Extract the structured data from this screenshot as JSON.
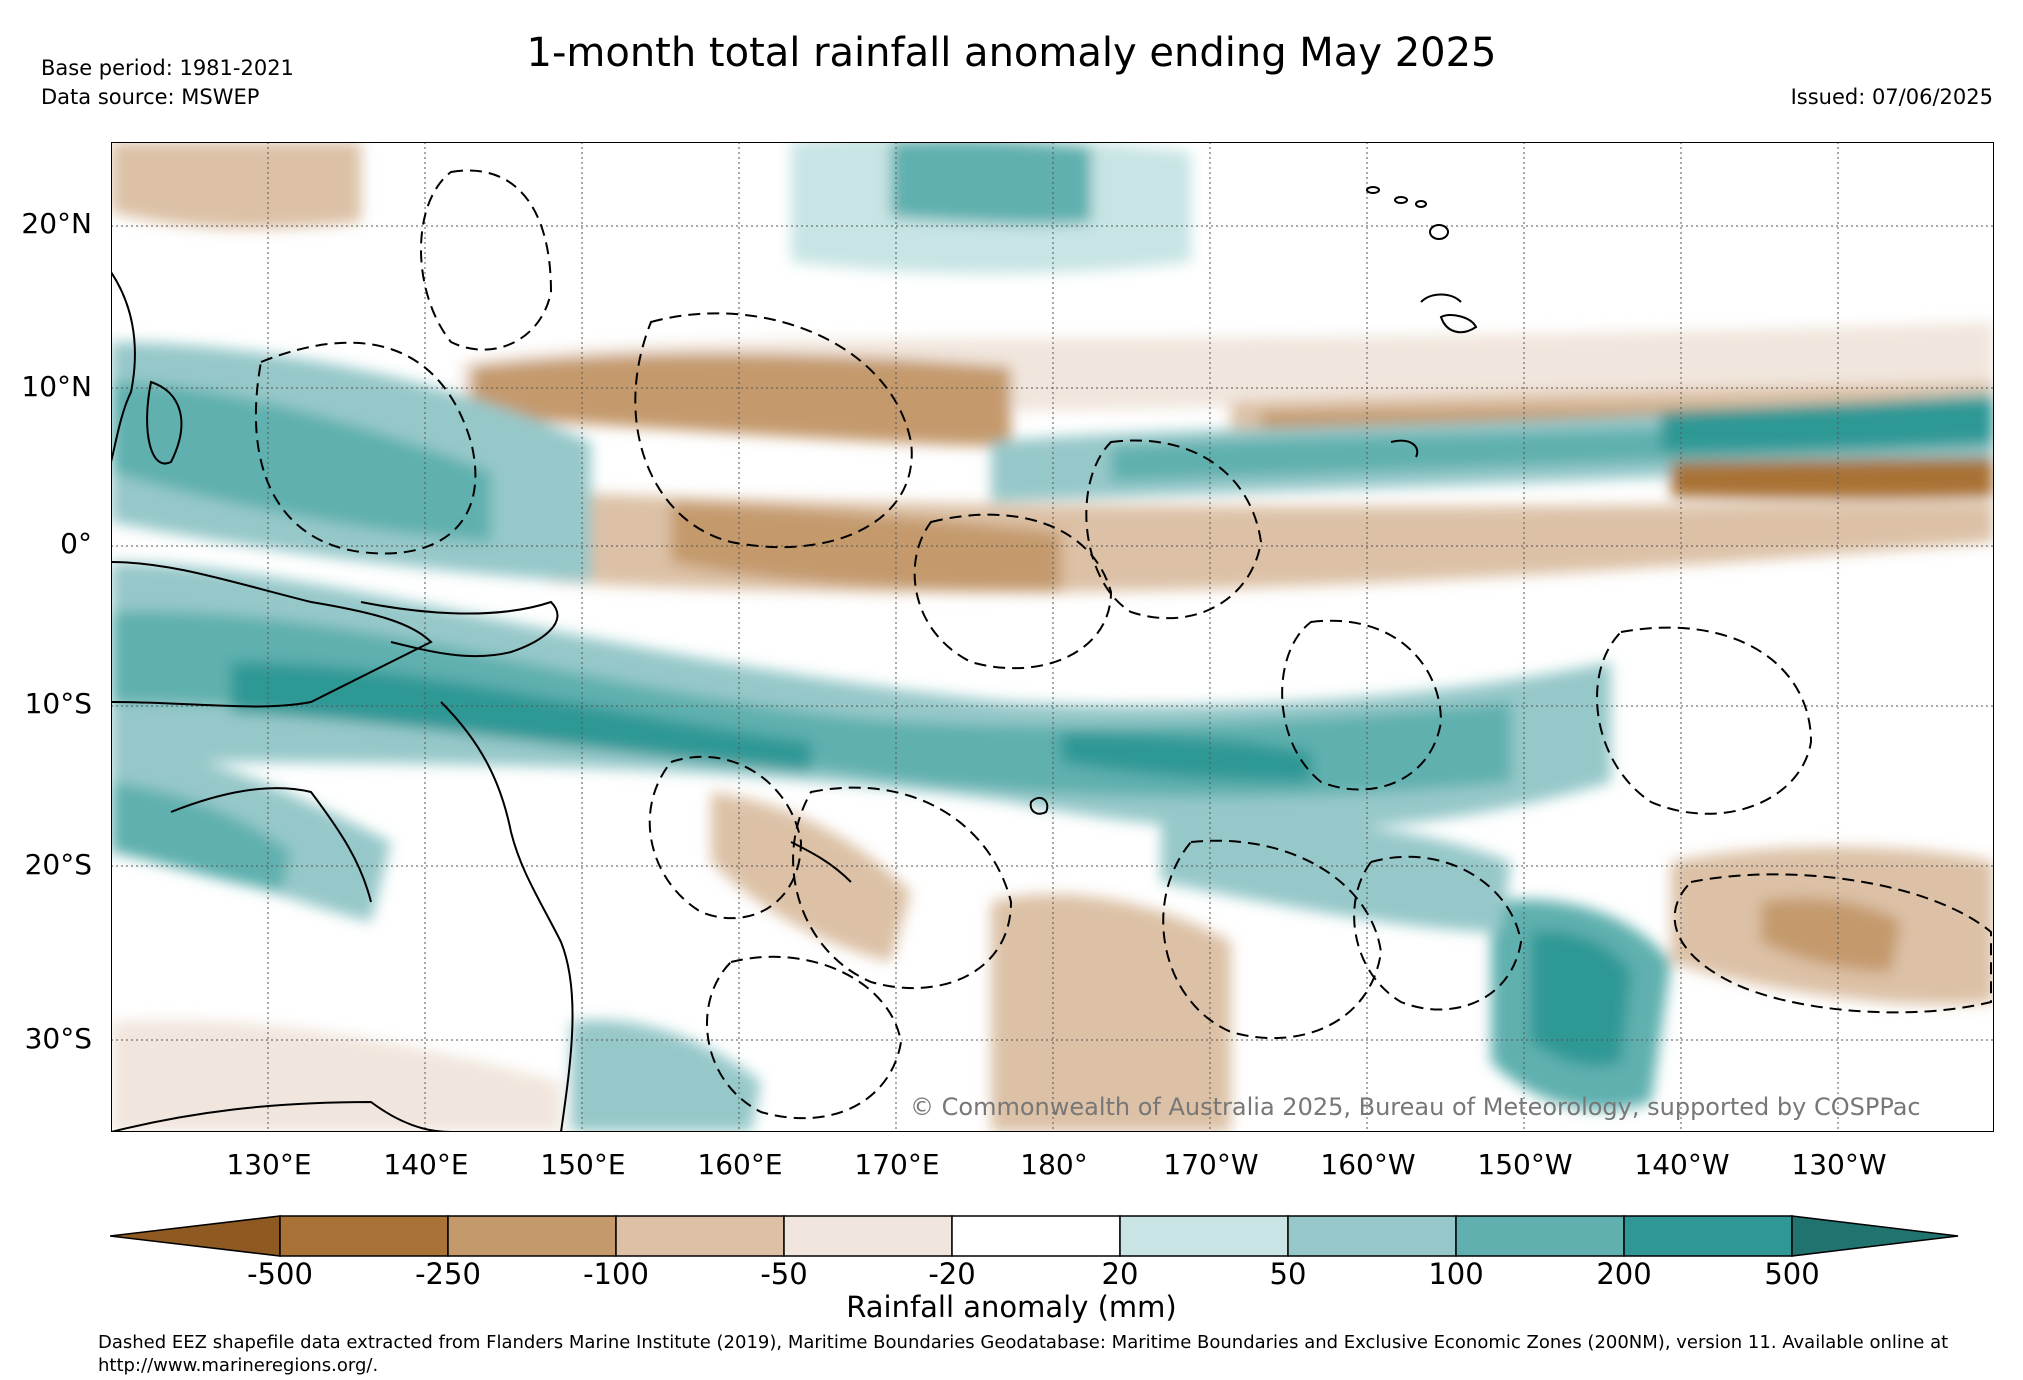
{
  "title": "1-month total rainfall anomaly ending May 2025",
  "base_period": "Base period: 1981-2021",
  "data_source": "Data source: MSWEP",
  "issued": "Issued: 07/06/2025",
  "copyright": "© Commonwealth of Australia 2025, Bureau of Meteorology, supported by COSPPac",
  "axes": {
    "lat_labels": [
      "20°N",
      "10°N",
      "0°",
      "10°S",
      "20°S",
      "30°S"
    ],
    "lat_values": [
      20,
      10,
      0,
      -10,
      -20,
      -30
    ],
    "lon_labels": [
      "130°E",
      "140°E",
      "150°E",
      "160°E",
      "170°E",
      "180°",
      "170°W",
      "160°W",
      "150°W",
      "140°W",
      "130°W"
    ],
    "lon_values": [
      130,
      140,
      150,
      160,
      170,
      180,
      190,
      200,
      210,
      220,
      230
    ],
    "lat_range": [
      -36,
      25
    ],
    "lon_range": [
      120,
      240
    ],
    "grid": "dotted"
  },
  "colorbar": {
    "title": "Rainfall anomaly (mm)",
    "tick_labels": [
      "-500",
      "-250",
      "-100",
      "-50",
      "-20",
      "20",
      "50",
      "100",
      "200",
      "500"
    ],
    "bins": [
      {
        "range": "< -500",
        "color": "#8f5a22"
      },
      {
        "range": "-500 to -250",
        "color": "#a97236"
      },
      {
        "range": "-250 to -100",
        "color": "#c49a6d"
      },
      {
        "range": "-100 to -50",
        "color": "#dcc1a6"
      },
      {
        "range": "-50 to -20",
        "color": "#f1e6dd"
      },
      {
        "range": "-20 to 20",
        "color": "#ffffff"
      },
      {
        "range": "20 to 50",
        "color": "#c8e4e4"
      },
      {
        "range": "50 to 100",
        "color": "#96c8c9"
      },
      {
        "range": "100 to 200",
        "color": "#5fb0af"
      },
      {
        "range": "200 to 500",
        "color": "#2f9895"
      },
      {
        "range": "> 500",
        "color": "#20736f"
      }
    ]
  },
  "footnote": "Dashed EEZ shapefile data extracted from Flanders Marine Institute (2019), Maritime Boundaries Geodatabase: Maritime Boundaries and Exclusive Economic Zones (200NM), version 11. Available online at http://www.marineregions.org/."
}
